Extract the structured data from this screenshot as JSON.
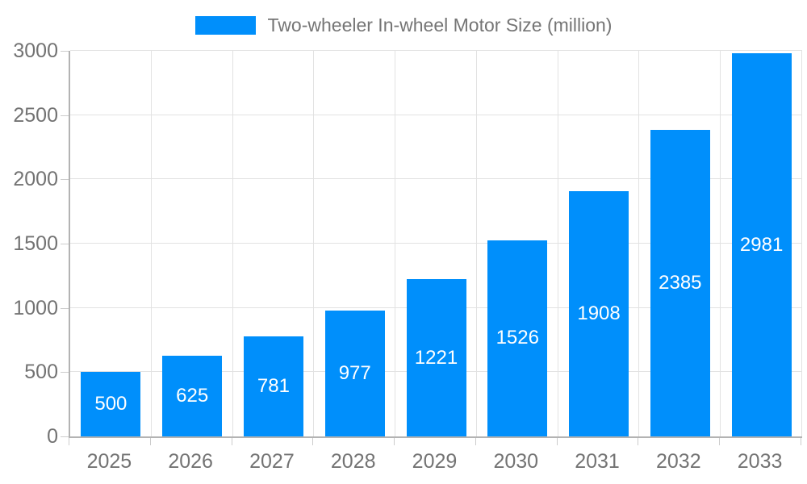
{
  "legend": {
    "position": "top-center",
    "items": [
      {
        "label": "Two-wheeler In-wheel Motor Size (million)",
        "color": "#008ffb"
      }
    ]
  },
  "chart_data": {
    "type": "bar",
    "title": "",
    "categories": [
      "2025",
      "2026",
      "2027",
      "2028",
      "2029",
      "2030",
      "2031",
      "2032",
      "2033"
    ],
    "series": [
      {
        "name": "Two-wheeler In-wheel Motor Size (million)",
        "values": [
          500,
          625,
          781,
          977,
          1221,
          1526,
          1908,
          2385,
          2981
        ],
        "color": "#008ffb"
      }
    ],
    "value_labels": [
      "500",
      "625",
      "781",
      "977",
      "1221",
      "1526",
      "1908",
      "2385",
      "2981"
    ],
    "value_label_color": "#ffffff",
    "xlabel": "",
    "ylabel": "",
    "ylim": [
      0,
      3000
    ],
    "yticks": [
      0,
      500,
      1000,
      1500,
      2000,
      2500,
      3000
    ],
    "grid": true,
    "legend_position": "top",
    "colors": {
      "bar": "#008ffb",
      "axis_label": "#737373",
      "gridline": "#e2e2e2",
      "axis_line": "#b3b3b3"
    }
  }
}
